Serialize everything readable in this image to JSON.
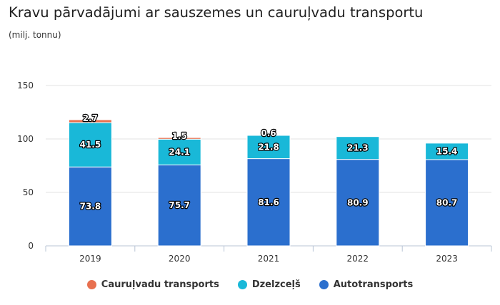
{
  "chart_data": {
    "type": "bar",
    "stacked": true,
    "title": "Kravu pārvadājumi ar sauszemes un cauruļvadu transportu",
    "subtitle": "(milj. tonnu)",
    "categories": [
      "2019",
      "2020",
      "2021",
      "2022",
      "2023"
    ],
    "ylim": [
      0,
      150
    ],
    "yticks": [
      "0",
      "50",
      "100",
      "150"
    ],
    "grid": true,
    "legend_position": "bottom",
    "series": [
      {
        "name": "Autotransports",
        "color": "#2b6fce",
        "values": [
          73.8,
          75.7,
          81.6,
          80.9,
          80.7
        ],
        "labels": [
          "73.8",
          "75.7",
          "81.6",
          "80.9",
          "80.7"
        ]
      },
      {
        "name": "Dzelzceļš",
        "color": "#19b8d8",
        "values": [
          41.5,
          24.1,
          21.8,
          21.3,
          15.4
        ],
        "labels": [
          "41.5",
          "24.1",
          "21.8",
          "21.3",
          "15.4"
        ]
      },
      {
        "name": "Cauruļvadu transports",
        "color": "#e8704f",
        "values": [
          2.7,
          1.5,
          0.6,
          0,
          0
        ],
        "labels": [
          "2.7",
          "1.5",
          "0.6",
          "",
          ""
        ]
      }
    ],
    "legend": [
      "Cauruļvadu transports",
      "Dzelzceļš",
      "Autotransports"
    ]
  }
}
